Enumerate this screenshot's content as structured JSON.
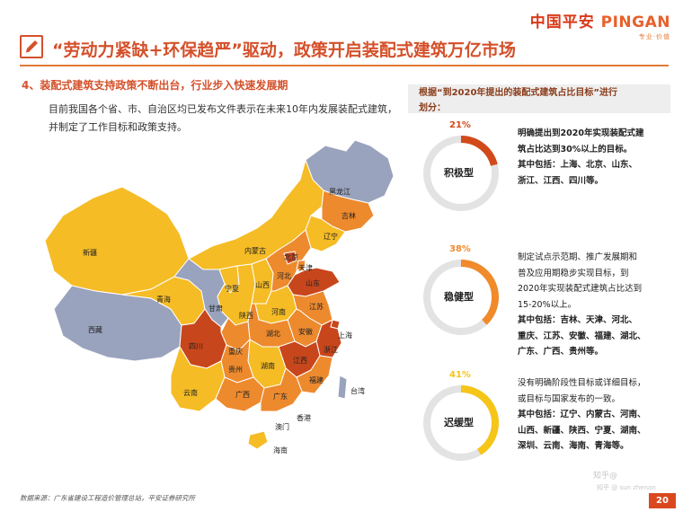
{
  "logo": {
    "brand": "中国平安",
    "brand_en": "PINGAN",
    "tagline": "专业·价值"
  },
  "title": "“劳动力紧缺+环保趋严”驱动，政策开启装配式建筑万亿市场",
  "section": {
    "subtitle": "4、装配式建筑支持政策不断出台，行业步入快速发展期",
    "intro": "目前我国各个省、市、自治区均已发布文件表示在未来10年内发展装配式建筑，并制定了工作目标和政策支持。"
  },
  "side": {
    "heading_line1": "根据“到2020年提出的装配式建筑占比目标”进行",
    "heading_line2": "划分："
  },
  "groups": [
    {
      "percent": "21%",
      "percent_value": 21,
      "label": "积极型",
      "color": "#d24a1a",
      "desc_lines": [
        "明确提出到2020年实现装配式建",
        "筑占比达到30%以上的目标。",
        "其中包括：上海、北京、山东、",
        "浙江、江西、四川等。"
      ]
    },
    {
      "percent": "38%",
      "percent_value": 38,
      "label": "稳健型",
      "color": "#f08a2b",
      "desc_lines": [
        "制定试点示范期、推广发展期和",
        "普及应用期稳步实现目标，到",
        "2020年实现装配式建筑占比达到",
        "15-20%以上。",
        "其中包括：吉林、天津、河北、",
        "重庆、江苏、安徽、福建、湖北、",
        "广东、广西、贵州等。"
      ]
    },
    {
      "percent": "41%",
      "percent_value": 41,
      "label": "迟缓型",
      "color": "#f5c518",
      "desc_lines": [
        "没有明确阶段性目标或详细目标，",
        "或目标与国家发布的一致。",
        "其中包括：辽宁、内蒙古、河南、",
        "山西、新疆、陕西、宁夏、湖南、",
        "深圳、云南、海南、青海等。"
      ]
    }
  ],
  "map_labels": {
    "heilongjiang": "黑龙江",
    "jilin": "吉林",
    "liaoning": "辽宁",
    "neimenggu": "内蒙古",
    "beijing": "北京",
    "tianjin": "天津",
    "hebei": "河北",
    "shanxi": "山西",
    "shandong": "山东",
    "xinjiang": "新疆",
    "qinghai": "青海",
    "xizang": "西藏",
    "gansu": "甘肃",
    "ningxia": "宁夏",
    "shaanxi": "陕西",
    "henan": "河南",
    "jiangsu": "江苏",
    "anhui": "安徽",
    "shanghai": "上海",
    "sichuan": "四川",
    "chongqing": "重庆",
    "hubei": "湖北",
    "zhejiang": "浙江",
    "guizhou": "贵州",
    "hunan": "湖南",
    "jiangxi": "江西",
    "fujian": "福建",
    "yunnan": "云南",
    "guangxi": "广西",
    "guangdong": "广东",
    "xianggang": "香港",
    "aomen": "澳门",
    "taiwan": "台湾",
    "hainan": "海南"
  },
  "footer": "数据来源：广东省建设工程造价管理总站，平安证券研究所",
  "watermark": "知乎@",
  "watermark2": "知乎 @ sun zhenan",
  "page": "20",
  "colors": {
    "accent": "#d4502a",
    "active": "#c8461c",
    "steady": "#ed8a2e",
    "slow": "#f5bc25",
    "none": "#9aa3bd"
  }
}
